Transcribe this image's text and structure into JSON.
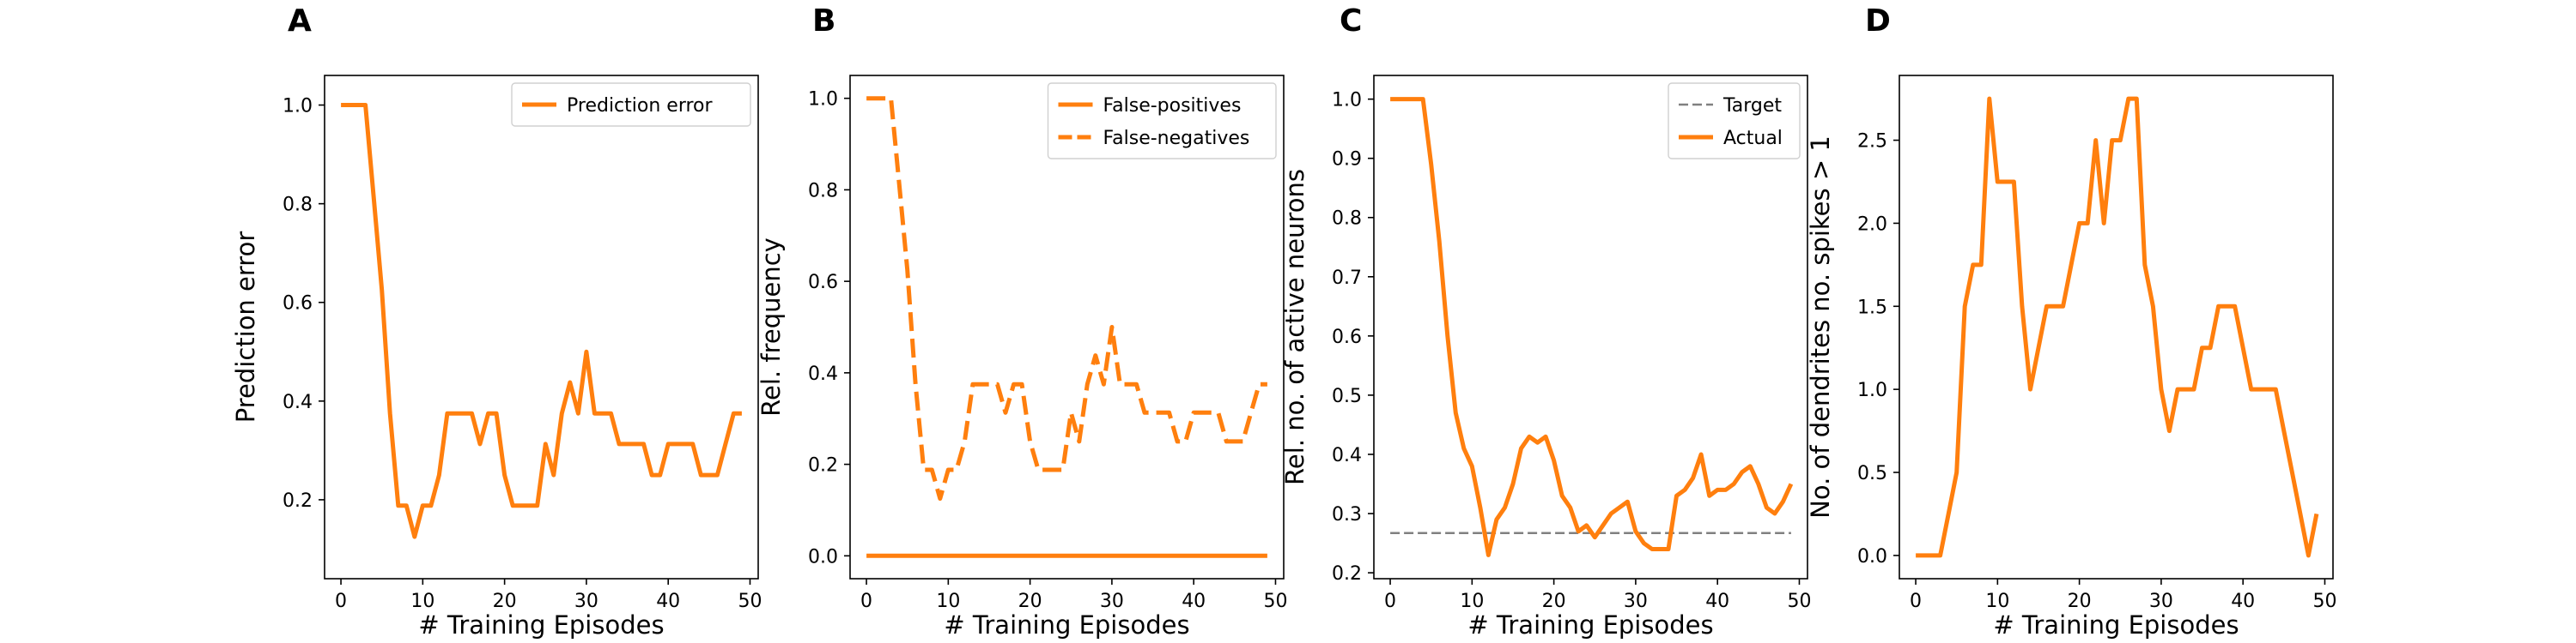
{
  "colors": {
    "orange": "#ff7f0e",
    "gray": "#808080",
    "axis": "#000000"
  },
  "chart_data": [
    {
      "panel": "A",
      "type": "line",
      "xlabel": "# Training Episodes",
      "ylabel": "Prediction error",
      "xlim": [
        -2,
        51
      ],
      "ylim": [
        0.04,
        1.06
      ],
      "xticks": [
        0,
        10,
        20,
        30,
        40,
        50
      ],
      "yticks": [
        0.2,
        0.4,
        0.6,
        0.8,
        1.0
      ],
      "ytick_labels": [
        "0.2",
        "0.4",
        "0.6",
        "0.8",
        "1.0"
      ],
      "legend": {
        "loc": "upper right"
      },
      "series": [
        {
          "name": "Prediction error",
          "style": "solid",
          "x": [
            0,
            1,
            2,
            3,
            4,
            5,
            6,
            7,
            8,
            9,
            10,
            11,
            12,
            13,
            14,
            15,
            16,
            17,
            18,
            19,
            20,
            21,
            22,
            23,
            24,
            25,
            26,
            27,
            28,
            29,
            30,
            31,
            32,
            33,
            34,
            35,
            36,
            37,
            38,
            39,
            40,
            41,
            42,
            43,
            44,
            45,
            46,
            47,
            48,
            49
          ],
          "y": [
            1.0,
            1.0,
            1.0,
            1.0,
            0.813,
            0.625,
            0.375,
            0.188,
            0.188,
            0.125,
            0.188,
            0.188,
            0.25,
            0.375,
            0.375,
            0.375,
            0.375,
            0.313,
            0.375,
            0.375,
            0.25,
            0.188,
            0.188,
            0.188,
            0.188,
            0.313,
            0.25,
            0.375,
            0.438,
            0.375,
            0.5,
            0.375,
            0.375,
            0.375,
            0.313,
            0.313,
            0.313,
            0.313,
            0.25,
            0.25,
            0.313,
            0.313,
            0.313,
            0.313,
            0.25,
            0.25,
            0.25,
            0.313,
            0.375,
            0.375
          ]
        }
      ]
    },
    {
      "panel": "B",
      "type": "line",
      "xlabel": "# Training Episodes",
      "ylabel": "Rel. frequency",
      "xlim": [
        -2,
        51
      ],
      "ylim": [
        -0.05,
        1.05
      ],
      "xticks": [
        0,
        10,
        20,
        30,
        40,
        50
      ],
      "yticks": [
        0.0,
        0.2,
        0.4,
        0.6,
        0.8,
        1.0
      ],
      "ytick_labels": [
        "0.0",
        "0.2",
        "0.4",
        "0.6",
        "0.8",
        "1.0"
      ],
      "legend": {
        "loc": "upper right"
      },
      "series": [
        {
          "name": "False-positives",
          "style": "solid",
          "x": [
            0,
            49
          ],
          "y": [
            0.0,
            0.0
          ]
        },
        {
          "name": "False-negatives",
          "style": "dashed",
          "x": [
            0,
            1,
            2,
            3,
            4,
            5,
            6,
            7,
            8,
            9,
            10,
            11,
            12,
            13,
            14,
            15,
            16,
            17,
            18,
            19,
            20,
            21,
            22,
            23,
            24,
            25,
            26,
            27,
            28,
            29,
            30,
            31,
            32,
            33,
            34,
            35,
            36,
            37,
            38,
            39,
            40,
            41,
            42,
            43,
            44,
            45,
            46,
            47,
            48,
            49
          ],
          "y": [
            1.0,
            1.0,
            1.0,
            1.0,
            0.813,
            0.625,
            0.375,
            0.188,
            0.188,
            0.125,
            0.188,
            0.188,
            0.25,
            0.375,
            0.375,
            0.375,
            0.375,
            0.313,
            0.375,
            0.375,
            0.25,
            0.188,
            0.188,
            0.188,
            0.188,
            0.313,
            0.25,
            0.375,
            0.438,
            0.375,
            0.5,
            0.375,
            0.375,
            0.375,
            0.313,
            0.313,
            0.313,
            0.313,
            0.25,
            0.25,
            0.313,
            0.313,
            0.313,
            0.313,
            0.25,
            0.25,
            0.25,
            0.313,
            0.375,
            0.375
          ]
        }
      ]
    },
    {
      "panel": "C",
      "type": "line",
      "xlabel": "# Training Episodes",
      "ylabel": "Rel. no. of active neurons",
      "xlim": [
        -2,
        51
      ],
      "ylim": [
        0.19,
        1.04
      ],
      "xticks": [
        0,
        10,
        20,
        30,
        40,
        50
      ],
      "yticks": [
        0.2,
        0.3,
        0.4,
        0.5,
        0.6,
        0.7,
        0.8,
        0.9,
        1.0
      ],
      "ytick_labels": [
        "0.2",
        "0.3",
        "0.4",
        "0.5",
        "0.6",
        "0.7",
        "0.8",
        "0.9",
        "1.0"
      ],
      "legend": {
        "loc": "upper right"
      },
      "series": [
        {
          "name": "Target",
          "style": "dashed",
          "x": [
            0,
            49
          ],
          "y": [
            0.267,
            0.267
          ]
        },
        {
          "name": "Actual",
          "style": "solid",
          "x": [
            0,
            1,
            2,
            3,
            4,
            5,
            6,
            7,
            8,
            9,
            10,
            11,
            12,
            13,
            14,
            15,
            16,
            17,
            18,
            19,
            20,
            21,
            22,
            23,
            24,
            25,
            26,
            27,
            28,
            29,
            30,
            31,
            32,
            33,
            34,
            35,
            36,
            37,
            38,
            39,
            40,
            41,
            42,
            43,
            44,
            45,
            46,
            47,
            48,
            49
          ],
          "y": [
            1.0,
            1.0,
            1.0,
            1.0,
            1.0,
            0.89,
            0.76,
            0.6,
            0.47,
            0.41,
            0.38,
            0.31,
            0.23,
            0.29,
            0.31,
            0.35,
            0.41,
            0.43,
            0.42,
            0.43,
            0.39,
            0.33,
            0.31,
            0.27,
            0.28,
            0.26,
            0.28,
            0.3,
            0.31,
            0.32,
            0.27,
            0.25,
            0.24,
            0.24,
            0.24,
            0.33,
            0.34,
            0.36,
            0.4,
            0.33,
            0.34,
            0.34,
            0.35,
            0.37,
            0.38,
            0.35,
            0.31,
            0.3,
            0.32,
            0.35
          ]
        }
      ]
    },
    {
      "panel": "D",
      "type": "line",
      "xlabel": "# Training Episodes",
      "ylabel": "No. of dendrites no. spikes > 1",
      "xlim": [
        -2,
        51
      ],
      "ylim": [
        -0.14,
        2.89
      ],
      "xticks": [
        0,
        10,
        20,
        30,
        40,
        50
      ],
      "yticks": [
        0.0,
        0.5,
        1.0,
        1.5,
        2.0,
        2.5
      ],
      "ytick_labels": [
        "0.0",
        "0.5",
        "1.0",
        "1.5",
        "2.0",
        "2.5"
      ],
      "legend": null,
      "series": [
        {
          "style": "solid",
          "x": [
            0,
            1,
            2,
            3,
            4,
            5,
            6,
            7,
            8,
            9,
            10,
            11,
            12,
            13,
            14,
            15,
            16,
            17,
            18,
            19,
            20,
            21,
            22,
            23,
            24,
            25,
            26,
            27,
            28,
            29,
            30,
            31,
            32,
            33,
            34,
            35,
            36,
            37,
            38,
            39,
            40,
            41,
            42,
            43,
            44,
            45,
            46,
            47,
            48,
            49
          ],
          "y": [
            0.0,
            0.0,
            0.0,
            0.0,
            0.25,
            0.5,
            1.5,
            1.75,
            1.75,
            2.75,
            2.25,
            2.25,
            2.25,
            1.5,
            1.0,
            1.25,
            1.5,
            1.5,
            1.5,
            1.75,
            2.0,
            2.0,
            2.5,
            2.0,
            2.5,
            2.5,
            2.75,
            2.75,
            1.75,
            1.5,
            1.0,
            0.75,
            1.0,
            1.0,
            1.0,
            1.25,
            1.25,
            1.5,
            1.5,
            1.5,
            1.25,
            1.0,
            1.0,
            1.0,
            1.0,
            0.75,
            0.5,
            0.25,
            0.0,
            0.25
          ]
        }
      ]
    }
  ]
}
